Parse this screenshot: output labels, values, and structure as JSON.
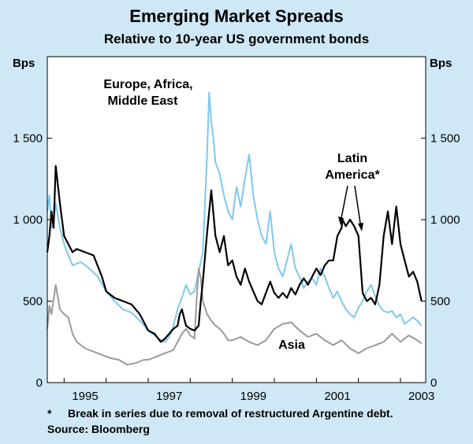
{
  "colors": {
    "background": "#cfe8f6",
    "plot_bg": "#ffffff",
    "latin": "#000000",
    "emea": "#7fc8ef",
    "asia": "#9a9a9a",
    "axis": "#000000"
  },
  "chart_data": {
    "type": "line",
    "title": "Emerging Market Spreads",
    "subtitle": "Relative to 10-year US government bonds",
    "ylabel_left": "Bps",
    "ylabel_right": "Bps",
    "xlim": [
      1994.6,
      2003.6
    ],
    "ylim": [
      0,
      2000
    ],
    "x_ticks": [
      1995,
      1997,
      1999,
      2001,
      2003
    ],
    "x_tick_labels": [
      "1995",
      "1997",
      "1999",
      "2001",
      "2003"
    ],
    "y_ticks": [
      0,
      500,
      1000,
      1500
    ],
    "y_tick_labels": [
      "0",
      "500",
      "1 000",
      "1 500"
    ],
    "series": [
      {
        "name": "Latin America*",
        "color": "#000000",
        "x": [
          1994.6,
          1994.65,
          1994.7,
          1994.75,
          1994.8,
          1994.9,
          1995.0,
          1995.1,
          1995.2,
          1995.3,
          1995.5,
          1995.7,
          1995.9,
          1996.0,
          1996.2,
          1996.4,
          1996.6,
          1996.8,
          1997.0,
          1997.15,
          1997.3,
          1997.4,
          1997.5,
          1997.6,
          1997.7,
          1997.75,
          1997.8,
          1997.85,
          1997.9,
          1998.0,
          1998.1,
          1998.2,
          1998.25,
          1998.3,
          1998.4,
          1998.5,
          1998.6,
          1998.7,
          1998.8,
          1998.9,
          1999.0,
          1999.1,
          1999.2,
          1999.3,
          1999.4,
          1999.5,
          1999.6,
          1999.7,
          1999.8,
          1999.9,
          2000.0,
          2000.1,
          2000.2,
          2000.3,
          2000.4,
          2000.5,
          2000.6,
          2000.7,
          2000.8,
          2000.9,
          2001.0,
          2001.1,
          2001.2,
          2001.3,
          2001.4,
          2001.5,
          2001.6,
          2001.62,
          2001.7,
          2001.8,
          2001.9,
          2002.0,
          2002.1,
          2002.2,
          2002.3,
          2002.4,
          2002.5,
          2002.6,
          2002.7,
          2002.8,
          2002.9,
          2003.0,
          2003.1,
          2003.2,
          2003.3,
          2003.4,
          2003.5
        ],
        "values": [
          800,
          900,
          1050,
          950,
          1330,
          1100,
          900,
          850,
          800,
          820,
          800,
          780,
          650,
          560,
          520,
          500,
          480,
          420,
          320,
          300,
          250,
          270,
          300,
          330,
          350,
          420,
          450,
          400,
          350,
          330,
          320,
          350,
          500,
          620,
          920,
          1180,
          900,
          800,
          900,
          720,
          750,
          650,
          600,
          700,
          620,
          560,
          500,
          480,
          550,
          620,
          550,
          520,
          550,
          520,
          580,
          540,
          600,
          640,
          600,
          650,
          700,
          660,
          720,
          750,
          750,
          900,
          950,
          1000,
          960,
          1000,
          960,
          900,
          550,
          500,
          520,
          480,
          600,
          900,
          1050,
          850,
          1080,
          850,
          750,
          650,
          680,
          620,
          500
        ]
      },
      {
        "name": "Europe, Africa, Middle East",
        "color": "#7fc8ef",
        "x": [
          1994.6,
          1994.65,
          1994.7,
          1994.75,
          1994.8,
          1994.9,
          1995.0,
          1995.1,
          1995.2,
          1995.4,
          1995.6,
          1995.8,
          1996.0,
          1996.2,
          1996.4,
          1996.6,
          1996.8,
          1997.0,
          1997.15,
          1997.3,
          1997.4,
          1997.5,
          1997.6,
          1997.7,
          1997.8,
          1997.9,
          1998.0,
          1998.1,
          1998.2,
          1998.3,
          1998.4,
          1998.45,
          1998.5,
          1998.55,
          1998.6,
          1998.7,
          1998.8,
          1998.9,
          1999.0,
          1999.1,
          1999.2,
          1999.3,
          1999.4,
          1999.5,
          1999.6,
          1999.7,
          1999.8,
          1999.9,
          2000.0,
          2000.1,
          2000.2,
          2000.3,
          2000.4,
          2000.5,
          2000.6,
          2000.7,
          2000.8,
          2000.9,
          2001.0,
          2001.1,
          2001.2,
          2001.3,
          2001.4,
          2001.5,
          2001.6,
          2001.7,
          2001.8,
          2001.9,
          2002.0,
          2002.1,
          2002.2,
          2002.3,
          2002.4,
          2002.5,
          2002.6,
          2002.7,
          2002.8,
          2002.9,
          2003.0,
          2003.1,
          2003.2,
          2003.3,
          2003.4,
          2003.5
        ],
        "values": [
          1050,
          1150,
          950,
          1000,
          1100,
          950,
          850,
          780,
          720,
          740,
          700,
          650,
          560,
          500,
          450,
          430,
          380,
          320,
          290,
          260,
          250,
          280,
          350,
          450,
          520,
          600,
          540,
          560,
          680,
          800,
          1400,
          1780,
          1600,
          1500,
          1350,
          1280,
          1150,
          1050,
          1000,
          1200,
          1080,
          1250,
          1400,
          1150,
          1000,
          900,
          850,
          1050,
          800,
          700,
          650,
          750,
          850,
          700,
          650,
          580,
          620,
          640,
          600,
          700,
          650,
          580,
          520,
          560,
          500,
          450,
          420,
          400,
          460,
          500,
          560,
          600,
          530,
          470,
          440,
          430,
          440,
          400,
          420,
          360,
          380,
          400,
          380,
          350
        ]
      },
      {
        "name": "Asia",
        "color": "#9a9a9a",
        "x": [
          1994.6,
          1994.65,
          1994.7,
          1994.8,
          1994.9,
          1995.0,
          1995.1,
          1995.2,
          1995.3,
          1995.5,
          1995.7,
          1995.9,
          1996.1,
          1996.3,
          1996.5,
          1996.7,
          1996.9,
          1997.0,
          1997.2,
          1997.4,
          1997.6,
          1997.7,
          1997.8,
          1997.9,
          1998.0,
          1998.1,
          1998.15,
          1998.2,
          1998.25,
          1998.3,
          1998.4,
          1998.5,
          1998.6,
          1998.7,
          1998.8,
          1998.9,
          1999.0,
          1999.2,
          1999.4,
          1999.6,
          1999.8,
          2000.0,
          2000.2,
          2000.4,
          2000.6,
          2000.8,
          2001.0,
          2001.2,
          2001.4,
          2001.6,
          2001.8,
          2002.0,
          2002.2,
          2002.4,
          2002.6,
          2002.8,
          2003.0,
          2003.2,
          2003.4,
          2003.5
        ],
        "values": [
          330,
          470,
          420,
          600,
          450,
          420,
          400,
          300,
          250,
          210,
          190,
          170,
          150,
          140,
          110,
          120,
          140,
          140,
          160,
          180,
          200,
          250,
          300,
          330,
          290,
          270,
          500,
          700,
          640,
          500,
          420,
          380,
          350,
          330,
          300,
          260,
          260,
          280,
          250,
          230,
          260,
          330,
          360,
          370,
          320,
          280,
          300,
          260,
          230,
          260,
          210,
          180,
          210,
          230,
          250,
          300,
          250,
          290,
          260,
          240
        ]
      }
    ],
    "annotations": {
      "emea_line1": "Europe, Africa,",
      "emea_line2": "Middle East",
      "latam_line1": "Latin",
      "latam_line2": "America*",
      "asia": "Asia"
    }
  },
  "footnote": {
    "marker": "*",
    "text": "Break in series due to removal of restructured Argentine debt."
  },
  "source": "Source: Bloomberg"
}
